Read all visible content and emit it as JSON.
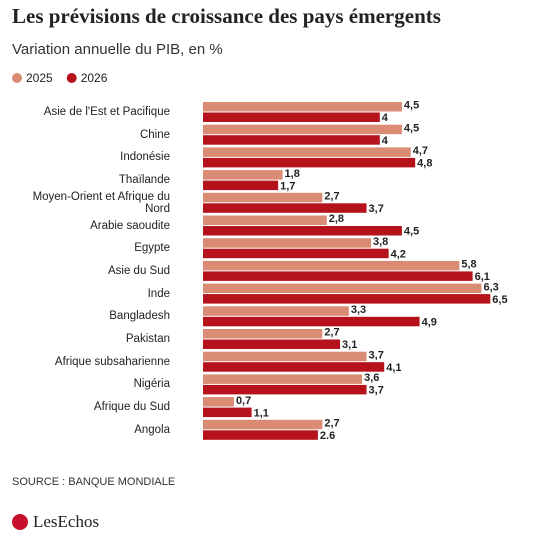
{
  "chart_data": {
    "type": "bar",
    "orientation": "horizontal",
    "title": "Les prévisions de croissance des pays émergents",
    "subtitle": "Variation annuelle du PIB, en %",
    "categories": [
      "Asie de l'Est et Pacifique",
      "Chine",
      "Indonésie",
      "Thaïlande",
      "Moyen-Orient et Afrique du Nord",
      "Arabie saoudite",
      "Egypte",
      "Asie du Sud",
      "Inde",
      "Bangladesh",
      "Pakistan",
      "Afrique subsaharienne",
      "Nigéria",
      "Afrique du Sud",
      "Angola"
    ],
    "series": [
      {
        "name": "2025",
        "color": "#d98b73",
        "values": [
          4.5,
          4.5,
          4.7,
          1.8,
          2.7,
          2.8,
          3.8,
          5.8,
          6.3,
          3.3,
          2.7,
          3.7,
          3.6,
          0.7,
          2.7
        ],
        "value_labels": [
          "4,5",
          "4,5",
          "4,7",
          "1,8",
          "2,7",
          "2,8",
          "3,8",
          "5,8",
          "6,3",
          "3,3",
          "2,7",
          "3,7",
          "3,6",
          "0,7",
          "2,7"
        ]
      },
      {
        "name": "2026",
        "color": "#b5121b",
        "values": [
          4,
          4,
          4.8,
          1.7,
          3.7,
          4.5,
          4.2,
          6.1,
          6.5,
          4.9,
          3.1,
          4.1,
          3.7,
          1.1,
          2.6
        ],
        "value_labels": [
          "4",
          "4",
          "4,8",
          "1,7",
          "3,7",
          "4,5",
          "4,2",
          "6,1",
          "6,5",
          "4,9",
          "3,1",
          "4,1",
          "3,7",
          "1,1",
          "2.6"
        ]
      }
    ],
    "source": "SOURCE : BANQUE MONDIALE",
    "logo": "LesEchos"
  }
}
